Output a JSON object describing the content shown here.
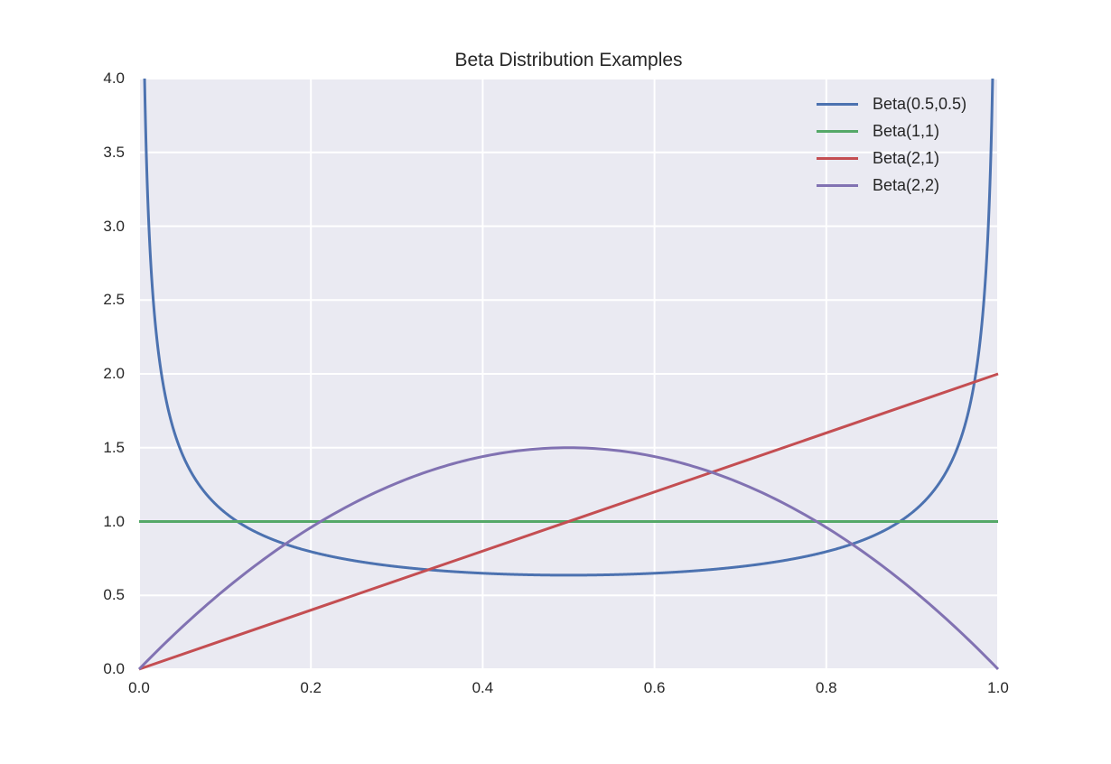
{
  "chart_data": {
    "type": "line",
    "title": "Beta Distribution Examples",
    "xlabel": "",
    "ylabel": "",
    "xlim": [
      0.0,
      1.0
    ],
    "ylim": [
      0.0,
      4.0
    ],
    "grid": true,
    "legend_position": "upper right",
    "xticks": [
      "0.0",
      "0.2",
      "0.4",
      "0.6",
      "0.8",
      "1.0"
    ],
    "yticks": [
      "0.0",
      "0.5",
      "1.0",
      "1.5",
      "2.0",
      "2.5",
      "3.0",
      "3.5",
      "4.0"
    ],
    "series": [
      {
        "name": "Beta(0.5,0.5)",
        "color": "#4c72b0",
        "x": [
          0.005,
          0.0075,
          0.01,
          0.015,
          0.02,
          0.03,
          0.04,
          0.05,
          0.07,
          0.1,
          0.13,
          0.16,
          0.2,
          0.25,
          0.3,
          0.35,
          0.4,
          0.45,
          0.5,
          0.55,
          0.6,
          0.65,
          0.7,
          0.75,
          0.8,
          0.84,
          0.87,
          0.9,
          0.93,
          0.95,
          0.96,
          0.97,
          0.98,
          0.985,
          0.99,
          0.9925,
          0.995
        ],
        "y": [
          4.51,
          3.69,
          3.2,
          2.62,
          2.27,
          1.87,
          1.62,
          1.46,
          1.25,
          1.06,
          0.95,
          0.87,
          0.8,
          0.74,
          0.69,
          0.67,
          0.65,
          0.64,
          0.64,
          0.64,
          0.65,
          0.67,
          0.69,
          0.74,
          0.8,
          0.87,
          0.95,
          1.06,
          1.25,
          1.46,
          1.62,
          1.87,
          2.27,
          2.62,
          3.2,
          3.69,
          4.51
        ]
      },
      {
        "name": "Beta(1,1)",
        "color": "#55a868",
        "x": [
          0.0,
          1.0
        ],
        "y": [
          1.0,
          1.0
        ]
      },
      {
        "name": "Beta(2,1)",
        "color": "#c44e52",
        "x": [
          0.0,
          1.0
        ],
        "y": [
          0.0,
          2.0
        ]
      },
      {
        "name": "Beta(2,2)",
        "color": "#8172b2",
        "x": [
          0.0,
          0.05,
          0.1,
          0.15,
          0.2,
          0.25,
          0.3,
          0.35,
          0.4,
          0.45,
          0.5,
          0.55,
          0.6,
          0.65,
          0.7,
          0.75,
          0.8,
          0.85,
          0.9,
          0.95,
          1.0
        ],
        "y": [
          0.0,
          0.285,
          0.54,
          0.765,
          0.96,
          1.125,
          1.26,
          1.365,
          1.44,
          1.485,
          1.5,
          1.485,
          1.44,
          1.365,
          1.26,
          1.125,
          0.96,
          0.765,
          0.54,
          0.285,
          0.0
        ]
      }
    ]
  },
  "colors": {
    "plot_background": "#eaeaf2",
    "grid": "#ffffff",
    "text": "#262626"
  }
}
